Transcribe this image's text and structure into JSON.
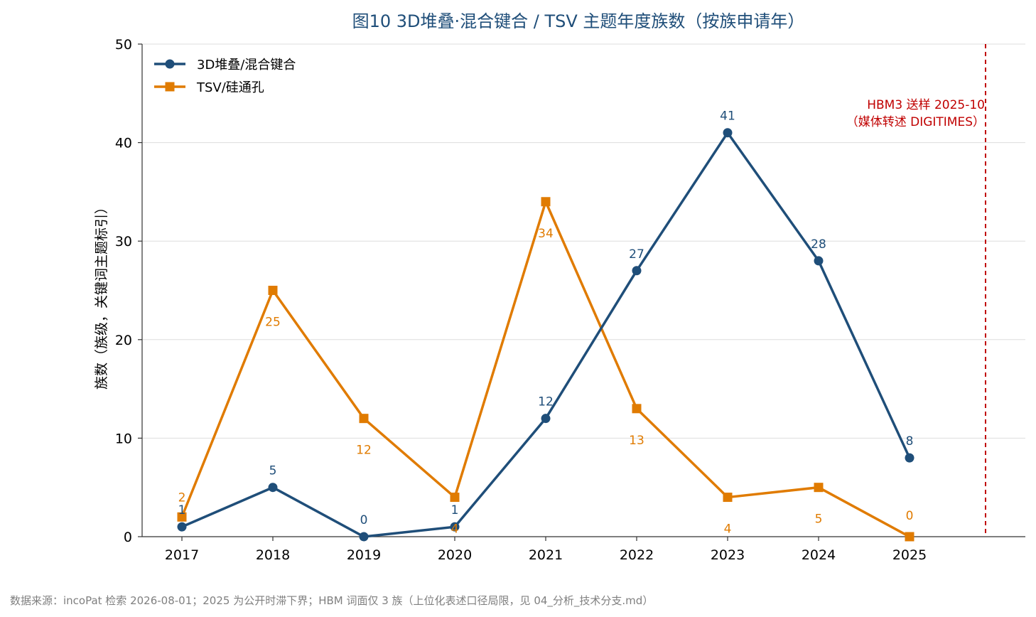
{
  "chart_data": {
    "type": "line",
    "title": "图10  3D堆叠·混合键合 / TSV 主题年度族数（按族申请年）",
    "ylabel": "族数（族级，关键词主题标引）",
    "xlabel": "",
    "categories": [
      "2017",
      "2018",
      "2019",
      "2020",
      "2021",
      "2022",
      "2023",
      "2024",
      "2025"
    ],
    "ylim": [
      0,
      50
    ],
    "yticks": [
      "0",
      "10",
      "20",
      "30",
      "40",
      "50"
    ],
    "grid": "horizontal",
    "legend_position": "top-left",
    "series": [
      {
        "name": "3D堆叠/混合键合",
        "color": "#1f4e79",
        "marker": "circle",
        "values": [
          1,
          5,
          0,
          1,
          12,
          27,
          41,
          28,
          8
        ]
      },
      {
        "name": "TSV/硅通孔",
        "color": "#e07b00",
        "marker": "square",
        "values": [
          2,
          25,
          12,
          4,
          34,
          13,
          4,
          5,
          0
        ]
      }
    ],
    "annotation": {
      "line1": "HBM3 送样 2025-10",
      "line2": "（媒体转述 DIGITIMES）",
      "color": "#c00000",
      "style": "dashed vertical line"
    },
    "source": "数据来源：incoPat 检索 2026-08-01；2025 为公开时滞下界；HBM 词面仅 3 族（上位化表述口径局限，见 04_分析_技术分支.md）"
  }
}
